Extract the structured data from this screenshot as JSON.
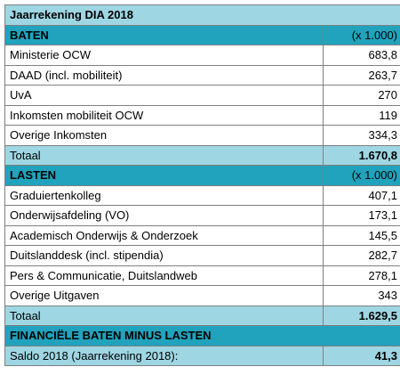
{
  "title": "Jaarrekening DIA 2018",
  "baten": {
    "header": "BATEN",
    "unit": "(x 1.000)",
    "rows": [
      {
        "label": "Ministerie OCW",
        "value": "683,8"
      },
      {
        "label": "DAAD (incl. mobiliteit)",
        "value": "263,7"
      },
      {
        "label": "UvA",
        "value": "270"
      },
      {
        "label": "Inkomsten mobiliteit OCW",
        "value": "119"
      },
      {
        "label": "Overige Inkomsten",
        "value": "334,3"
      }
    ],
    "total_label": "Totaal",
    "total_value": "1.670,8"
  },
  "lasten": {
    "header": "LASTEN",
    "unit": "(x 1.000)",
    "rows": [
      {
        "label": "Graduiertenkolleg",
        "value": "407,1"
      },
      {
        "label": "Onderwijsafdeling (VO)",
        "value": "173,1"
      },
      {
        "label": "Academisch Onderwijs & Onderzoek",
        "value": "145,5"
      },
      {
        "label": "Duitslanddesk (incl. stipendia)",
        "value": "282,7"
      },
      {
        "label": "Pers & Communicatie, Duitslandweb",
        "value": "278,1"
      },
      {
        "label": "Overige Uitgaven",
        "value": "343"
      }
    ],
    "total_label": "Totaal",
    "total_value": "1.629,5"
  },
  "financieel": {
    "header": "FINANCIËLE BATEN MINUS LASTEN",
    "saldo_label": "Saldo 2018 (Jaarrekening 2018):",
    "saldo_value": "41,3"
  }
}
